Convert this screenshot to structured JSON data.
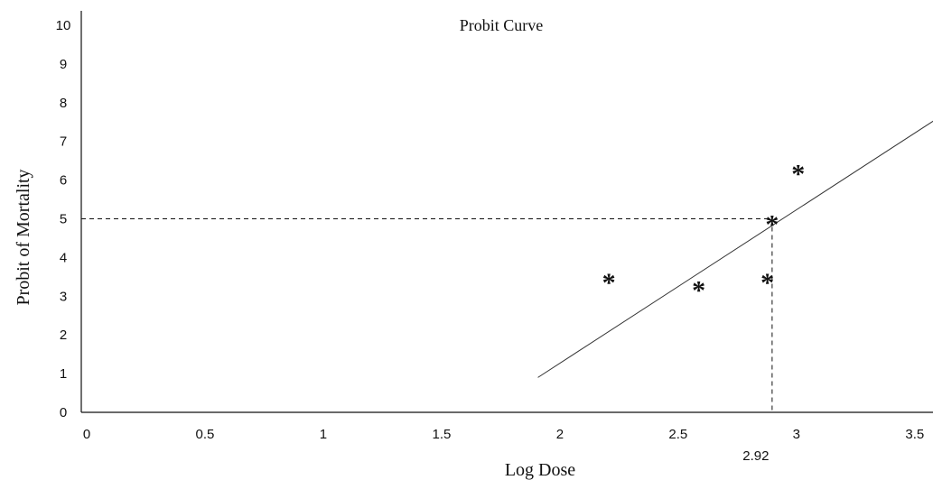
{
  "chart_data": {
    "type": "scatter",
    "title": "Probit Curve",
    "xlabel": "Log Dose",
    "ylabel": "Probit of  Mortality",
    "xlim": [
      0,
      3.6
    ],
    "ylim": [
      0,
      10
    ],
    "x_ticks": [
      "0",
      "0.5",
      "1",
      "1.5",
      "2",
      "2.5",
      "3",
      "3.5"
    ],
    "y_ticks": [
      "0",
      "1",
      "2",
      "3",
      "4",
      "5",
      "6",
      "7",
      "8",
      "9",
      "10"
    ],
    "grid": false,
    "points": [
      {
        "x": 2.23,
        "y": 3.5
      },
      {
        "x": 2.61,
        "y": 3.3
      },
      {
        "x": 2.9,
        "y": 3.5
      },
      {
        "x": 2.92,
        "y": 5.0
      },
      {
        "x": 3.03,
        "y": 6.3
      }
    ],
    "regression_line": {
      "x": [
        1.93,
        3.62
      ],
      "y": [
        0.9,
        7.6
      ]
    },
    "reference": {
      "x": 2.92,
      "y": 5,
      "x_label": "2.92"
    },
    "marker_glyph": "*"
  }
}
